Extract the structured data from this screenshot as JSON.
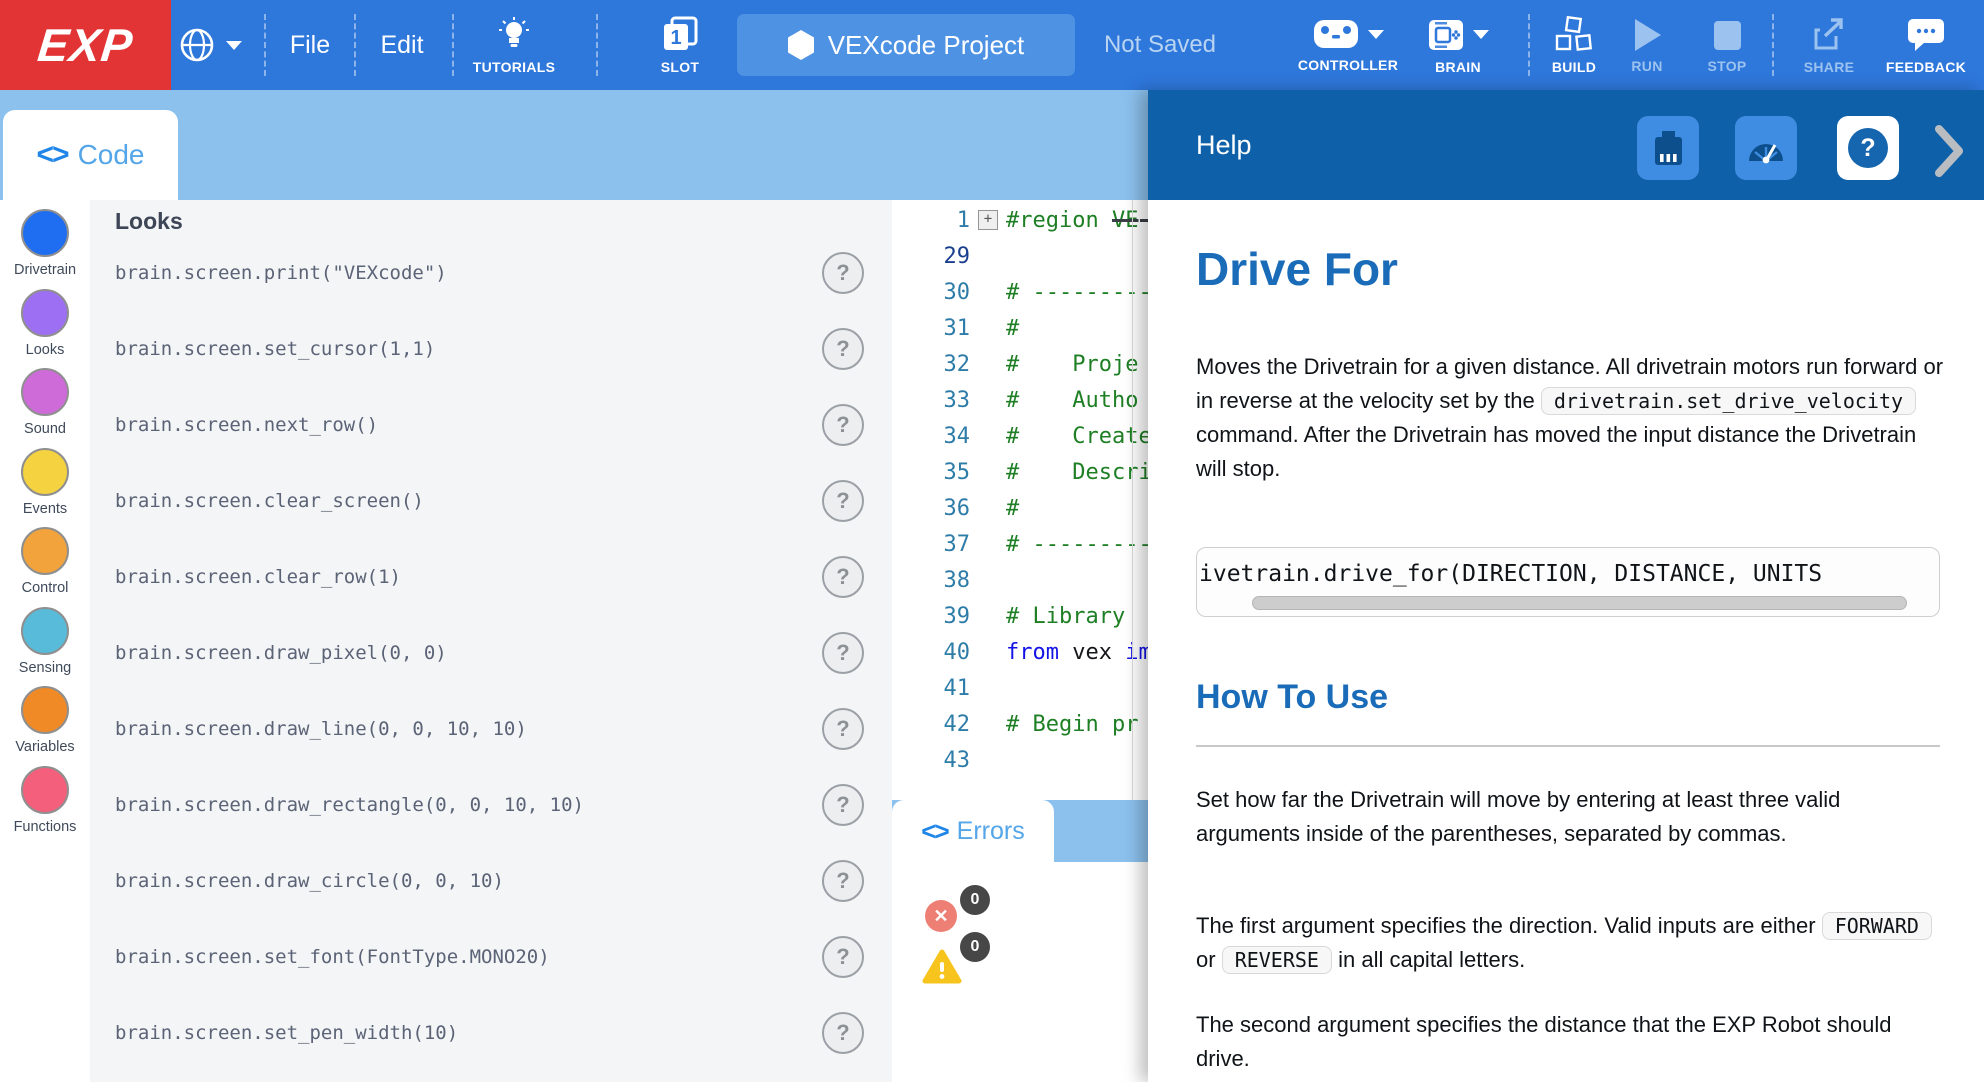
{
  "toolbar": {
    "logo": "EXP",
    "file": "File",
    "edit": "Edit",
    "tutorials": "TUTORIALS",
    "slot": "SLOT",
    "slot_number": "1",
    "project_title": "VEXcode Project",
    "status": "Not Saved",
    "controller": "CONTROLLER",
    "brain": "BRAIN",
    "build": "BUILD",
    "run": "RUN",
    "stop": "STOP",
    "share": "SHARE",
    "feedback": "FEEDBACK"
  },
  "code_tab": {
    "glyph_open": "<",
    "glyph_close": ">",
    "label": "Code"
  },
  "sidebar": {
    "items": [
      {
        "label": "Drivetrain",
        "color": "#1f6ef2"
      },
      {
        "label": "Looks",
        "color": "#9d6ff2"
      },
      {
        "label": "Sound",
        "color": "#ce6bd9"
      },
      {
        "label": "Events",
        "color": "#f5d340"
      },
      {
        "label": "Control",
        "color": "#f2a33c"
      },
      {
        "label": "Sensing",
        "color": "#57bbd9"
      },
      {
        "label": "Variables",
        "color": "#f08a27"
      },
      {
        "label": "Functions",
        "color": "#f4607c"
      }
    ]
  },
  "looks": {
    "title": "Looks",
    "help_glyph": "?",
    "commands": [
      "brain.screen.print(\"VEXcode\")",
      "brain.screen.set_cursor(1,1)",
      "brain.screen.next_row()",
      "brain.screen.clear_screen()",
      "brain.screen.clear_row(1)",
      "brain.screen.draw_pixel(0, 0)",
      "brain.screen.draw_line(0, 0, 10, 10)",
      "brain.screen.draw_rectangle(0, 0, 10, 10)",
      "brain.screen.draw_circle(0, 0, 10)",
      "brain.screen.set_font(FontType.MONO20)",
      "brain.screen.set_pen_width(10)"
    ]
  },
  "editor": {
    "fold_glyph": "+",
    "lines": [
      {
        "num": "1",
        "fold": true,
        "strike_ext": true,
        "segments": [
          {
            "text": "#region ",
            "cls": "c"
          },
          {
            "text": "VE",
            "cls": "c strike"
          }
        ]
      },
      {
        "num": "29",
        "active": true,
        "segments": []
      },
      {
        "num": "30",
        "segments": [
          {
            "text": "# --------------",
            "cls": "c"
          }
        ]
      },
      {
        "num": "31",
        "segments": [
          {
            "text": "#",
            "cls": "c"
          }
        ]
      },
      {
        "num": "32",
        "segments": [
          {
            "text": "#    Proje",
            "cls": "c"
          }
        ]
      },
      {
        "num": "33",
        "segments": [
          {
            "text": "#    Autho",
            "cls": "c"
          }
        ]
      },
      {
        "num": "34",
        "segments": [
          {
            "text": "#    Create",
            "cls": "c"
          }
        ]
      },
      {
        "num": "35",
        "segments": [
          {
            "text": "#    Descri",
            "cls": "c"
          }
        ]
      },
      {
        "num": "36",
        "segments": [
          {
            "text": "#",
            "cls": "c"
          }
        ]
      },
      {
        "num": "37",
        "segments": [
          {
            "text": "# --------------",
            "cls": "c"
          }
        ]
      },
      {
        "num": "38",
        "segments": []
      },
      {
        "num": "39",
        "segments": [
          {
            "text": "# Library",
            "cls": "c"
          }
        ]
      },
      {
        "num": "40",
        "segments": [
          {
            "text": "from",
            "cls": "k"
          },
          {
            "text": " vex ",
            "cls": "p"
          },
          {
            "text": "im",
            "cls": "k"
          }
        ]
      },
      {
        "num": "41",
        "segments": []
      },
      {
        "num": "42",
        "segments": [
          {
            "text": "# Begin pr",
            "cls": "c"
          }
        ]
      },
      {
        "num": "43",
        "segments": []
      }
    ]
  },
  "errors": {
    "glyph_open": "<",
    "glyph_close": ">",
    "tab_label": "Errors",
    "error_glyph": "✕",
    "warning_glyph": "!",
    "error_count": "0",
    "warning_count": "0"
  },
  "help": {
    "header": "Help",
    "title": "Drive For",
    "p1_before": "Moves the Drivetrain for a given distance. All drivetrain motors run forward or in reverse at the velocity set by the ",
    "p1_code": "drivetrain.set_drive_velocity",
    "p1_after": " command. After the Drivetrain has moved the input distance the Drivetrain will stop.",
    "code_line": "ivetrain.drive_for(DIRECTION, DISTANCE, UNITS",
    "how_to_use": "How To Use",
    "p2": "Set how far the Drivetrain will move by entering at least three valid arguments inside of the parentheses, separated by commas.",
    "p3_before": "The first argument specifies the direction. Valid inputs are either ",
    "p3_code1": "FORWARD",
    "p3_mid": " or ",
    "p3_code2": "REVERSE",
    "p3_after": " in all capital letters.",
    "p4": "The second argument specifies the distance that the EXP Robot should drive.",
    "question_glyph": "?"
  },
  "colors": {
    "toolbar_blue": "#2e77db",
    "band_blue": "#8cc1ed",
    "help_header_blue": "#0e61a9",
    "logo_red": "#e23434",
    "accent_blue": "#1a6cb8",
    "disabled_blue": "#9cc2f0"
  }
}
